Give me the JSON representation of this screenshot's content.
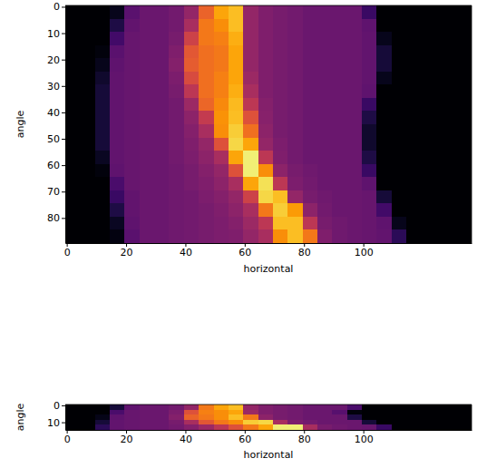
{
  "chart_data": [
    {
      "type": "heatmap",
      "x_label": "horizontal",
      "y_label": "angle",
      "xlim": [
        -0.5,
        136.5
      ],
      "ylim": [
        89.5,
        -0.5
      ],
      "xticks": [
        0,
        20,
        40,
        60,
        80,
        100
      ],
      "yticks": [
        0,
        10,
        20,
        30,
        40,
        50,
        60,
        70,
        80
      ],
      "color": "inferno",
      "color_range": [
        0,
        1
      ],
      "x_edges": [
        -0.5,
        4.5,
        9.5,
        14.5,
        19.5,
        24.5,
        29.5,
        34.5,
        39.5,
        44.5,
        49.5,
        54.5,
        59.5,
        64.5,
        69.5,
        74.5,
        79.5,
        84.5,
        89.5,
        94.5,
        99.5,
        104.5,
        109.5,
        114.5,
        119.5,
        124.5,
        129.5,
        134.5,
        136.5
      ],
      "y_edges": [
        -0.5,
        4.5,
        9.5,
        14.5,
        19.5,
        24.5,
        29.5,
        34.5,
        39.5,
        44.5,
        49.5,
        54.5,
        59.5,
        64.5,
        69.5,
        74.5,
        79.5,
        84.5,
        89.5
      ],
      "cells": [
        [
          0,
          0,
          0,
          0.05,
          0.26,
          0.3,
          0.3,
          0.32,
          0.4,
          0.65,
          0.8,
          0.85,
          0.4,
          0.35,
          0.33,
          0.32,
          0.3,
          0.3,
          0.3,
          0.3,
          0.18,
          0,
          0,
          0,
          0,
          0,
          0,
          0
        ],
        [
          0,
          0,
          0,
          0.12,
          0.28,
          0.3,
          0.3,
          0.32,
          0.45,
          0.7,
          0.75,
          0.85,
          0.4,
          0.35,
          0.33,
          0.32,
          0.3,
          0.3,
          0.3,
          0.3,
          0.27,
          0,
          0,
          0,
          0,
          0,
          0,
          0
        ],
        [
          0,
          0,
          0,
          0.2,
          0.29,
          0.3,
          0.3,
          0.33,
          0.55,
          0.7,
          0.72,
          0.82,
          0.4,
          0.35,
          0.33,
          0.32,
          0.3,
          0.3,
          0.3,
          0.3,
          0.28,
          0.05,
          0,
          0,
          0,
          0,
          0,
          0
        ],
        [
          0,
          0,
          0.02,
          0.26,
          0.29,
          0.3,
          0.3,
          0.35,
          0.62,
          0.68,
          0.7,
          0.8,
          0.4,
          0.35,
          0.33,
          0.32,
          0.3,
          0.3,
          0.3,
          0.3,
          0.28,
          0.1,
          0,
          0,
          0,
          0,
          0,
          0
        ],
        [
          0,
          0,
          0.05,
          0.27,
          0.29,
          0.3,
          0.3,
          0.36,
          0.63,
          0.68,
          0.7,
          0.8,
          0.4,
          0.35,
          0.33,
          0.32,
          0.3,
          0.3,
          0.3,
          0.3,
          0.28,
          0.1,
          0,
          0,
          0,
          0,
          0,
          0
        ],
        [
          0,
          0,
          0.08,
          0.28,
          0.29,
          0.3,
          0.3,
          0.34,
          0.58,
          0.68,
          0.72,
          0.8,
          0.42,
          0.35,
          0.33,
          0.32,
          0.3,
          0.3,
          0.3,
          0.3,
          0.28,
          0.05,
          0,
          0,
          0,
          0,
          0,
          0
        ],
        [
          0,
          0,
          0.1,
          0.28,
          0.29,
          0.3,
          0.3,
          0.33,
          0.5,
          0.68,
          0.72,
          0.82,
          0.45,
          0.35,
          0.33,
          0.32,
          0.3,
          0.3,
          0.3,
          0.3,
          0.27,
          0,
          0,
          0,
          0,
          0,
          0,
          0
        ],
        [
          0,
          0,
          0.1,
          0.28,
          0.29,
          0.3,
          0.3,
          0.32,
          0.42,
          0.66,
          0.74,
          0.84,
          0.5,
          0.36,
          0.33,
          0.32,
          0.3,
          0.3,
          0.3,
          0.3,
          0.18,
          0,
          0,
          0,
          0,
          0,
          0,
          0
        ],
        [
          0,
          0,
          0.1,
          0.28,
          0.29,
          0.3,
          0.3,
          0.32,
          0.38,
          0.52,
          0.76,
          0.85,
          0.6,
          0.37,
          0.33,
          0.32,
          0.3,
          0.3,
          0.3,
          0.3,
          0.12,
          0,
          0,
          0,
          0,
          0,
          0,
          0
        ],
        [
          0,
          0,
          0.1,
          0.28,
          0.29,
          0.3,
          0.3,
          0.32,
          0.36,
          0.45,
          0.75,
          0.88,
          0.68,
          0.38,
          0.33,
          0.32,
          0.3,
          0.3,
          0.3,
          0.3,
          0.08,
          0,
          0,
          0,
          0,
          0,
          0,
          0
        ],
        [
          0,
          0,
          0.1,
          0.28,
          0.29,
          0.3,
          0.3,
          0.32,
          0.35,
          0.4,
          0.6,
          0.9,
          0.8,
          0.4,
          0.34,
          0.32,
          0.3,
          0.3,
          0.3,
          0.3,
          0.08,
          0,
          0,
          0,
          0,
          0,
          0,
          0
        ],
        [
          0,
          0,
          0.06,
          0.28,
          0.29,
          0.3,
          0.3,
          0.32,
          0.34,
          0.38,
          0.45,
          0.8,
          0.95,
          0.5,
          0.35,
          0.32,
          0.3,
          0.3,
          0.3,
          0.3,
          0.12,
          0,
          0,
          0,
          0,
          0,
          0,
          0
        ],
        [
          0,
          0,
          0.02,
          0.27,
          0.29,
          0.3,
          0.3,
          0.31,
          0.33,
          0.36,
          0.4,
          0.6,
          0.95,
          0.75,
          0.38,
          0.33,
          0.31,
          0.3,
          0.3,
          0.3,
          0.18,
          0,
          0,
          0,
          0,
          0,
          0,
          0
        ],
        [
          0,
          0,
          0,
          0.22,
          0.29,
          0.3,
          0.3,
          0.31,
          0.33,
          0.35,
          0.38,
          0.45,
          0.8,
          0.92,
          0.5,
          0.34,
          0.32,
          0.3,
          0.3,
          0.3,
          0.27,
          0,
          0,
          0,
          0,
          0,
          0,
          0
        ],
        [
          0,
          0,
          0,
          0.18,
          0.28,
          0.3,
          0.3,
          0.31,
          0.32,
          0.34,
          0.36,
          0.4,
          0.55,
          0.9,
          0.85,
          0.4,
          0.33,
          0.31,
          0.3,
          0.3,
          0.29,
          0.1,
          0,
          0,
          0,
          0,
          0,
          0
        ],
        [
          0,
          0,
          0,
          0.12,
          0.28,
          0.3,
          0.3,
          0.31,
          0.32,
          0.33,
          0.35,
          0.38,
          0.45,
          0.7,
          0.88,
          0.78,
          0.38,
          0.32,
          0.3,
          0.3,
          0.29,
          0.2,
          0,
          0,
          0,
          0,
          0,
          0
        ],
        [
          0,
          0,
          0,
          0.06,
          0.27,
          0.3,
          0.3,
          0.31,
          0.32,
          0.33,
          0.34,
          0.36,
          0.42,
          0.5,
          0.85,
          0.85,
          0.5,
          0.33,
          0.31,
          0.3,
          0.29,
          0.27,
          0.05,
          0,
          0,
          0,
          0,
          0
        ],
        [
          0,
          0,
          0,
          0.03,
          0.26,
          0.3,
          0.3,
          0.31,
          0.32,
          0.33,
          0.34,
          0.35,
          0.4,
          0.45,
          0.75,
          0.85,
          0.7,
          0.35,
          0.31,
          0.3,
          0.29,
          0.28,
          0.15,
          0,
          0,
          0,
          0,
          0
        ]
      ]
    },
    {
      "type": "heatmap",
      "x_label": "horizontal",
      "y_label": "angle",
      "xlim": [
        -0.5,
        136.5
      ],
      "ylim": [
        14.5,
        -0.5
      ],
      "xticks": [
        0,
        20,
        40,
        60,
        80,
        100
      ],
      "yticks": [
        0,
        10
      ],
      "color": "inferno",
      "color_range": [
        0,
        1
      ],
      "x_edges": [
        -0.5,
        4.5,
        9.5,
        14.5,
        19.5,
        24.5,
        29.5,
        34.5,
        39.5,
        44.5,
        49.5,
        54.5,
        59.5,
        64.5,
        69.5,
        74.5,
        79.5,
        84.5,
        89.5,
        94.5,
        99.5,
        104.5,
        109.5,
        114.5,
        119.5,
        124.5,
        129.5,
        134.5,
        136.5
      ],
      "y_edges": [
        -0.5,
        2.5,
        5.5,
        8.5,
        11.5,
        14.5
      ],
      "cells": [
        [
          0,
          0,
          0,
          0.1,
          0.27,
          0.3,
          0.3,
          0.32,
          0.4,
          0.7,
          0.8,
          0.85,
          0.4,
          0.35,
          0.33,
          0.32,
          0.3,
          0.3,
          0.3,
          0.22,
          0,
          0,
          0,
          0,
          0,
          0,
          0,
          0
        ],
        [
          0,
          0,
          0,
          0.22,
          0.29,
          0.3,
          0.3,
          0.34,
          0.6,
          0.72,
          0.75,
          0.8,
          0.42,
          0.35,
          0.33,
          0.32,
          0.3,
          0.3,
          0.25,
          0.02,
          0,
          0,
          0,
          0,
          0,
          0,
          0,
          0
        ],
        [
          0,
          0,
          0.04,
          0.27,
          0.29,
          0.3,
          0.3,
          0.36,
          0.65,
          0.7,
          0.75,
          0.85,
          0.7,
          0.38,
          0.33,
          0.32,
          0.3,
          0.3,
          0.3,
          0.12,
          0,
          0,
          0,
          0,
          0,
          0,
          0,
          0
        ],
        [
          0,
          0,
          0.1,
          0.28,
          0.29,
          0.3,
          0.3,
          0.33,
          0.45,
          0.62,
          0.7,
          0.75,
          0.88,
          0.9,
          0.45,
          0.34,
          0.32,
          0.3,
          0.3,
          0.3,
          0.1,
          0,
          0,
          0,
          0,
          0,
          0,
          0
        ],
        [
          0,
          0,
          0.15,
          0.28,
          0.29,
          0.3,
          0.3,
          0.32,
          0.36,
          0.42,
          0.5,
          0.6,
          0.7,
          0.8,
          0.95,
          0.95,
          0.45,
          0.33,
          0.31,
          0.3,
          0.29,
          0.18,
          0,
          0,
          0,
          0,
          0,
          0
        ]
      ]
    }
  ]
}
